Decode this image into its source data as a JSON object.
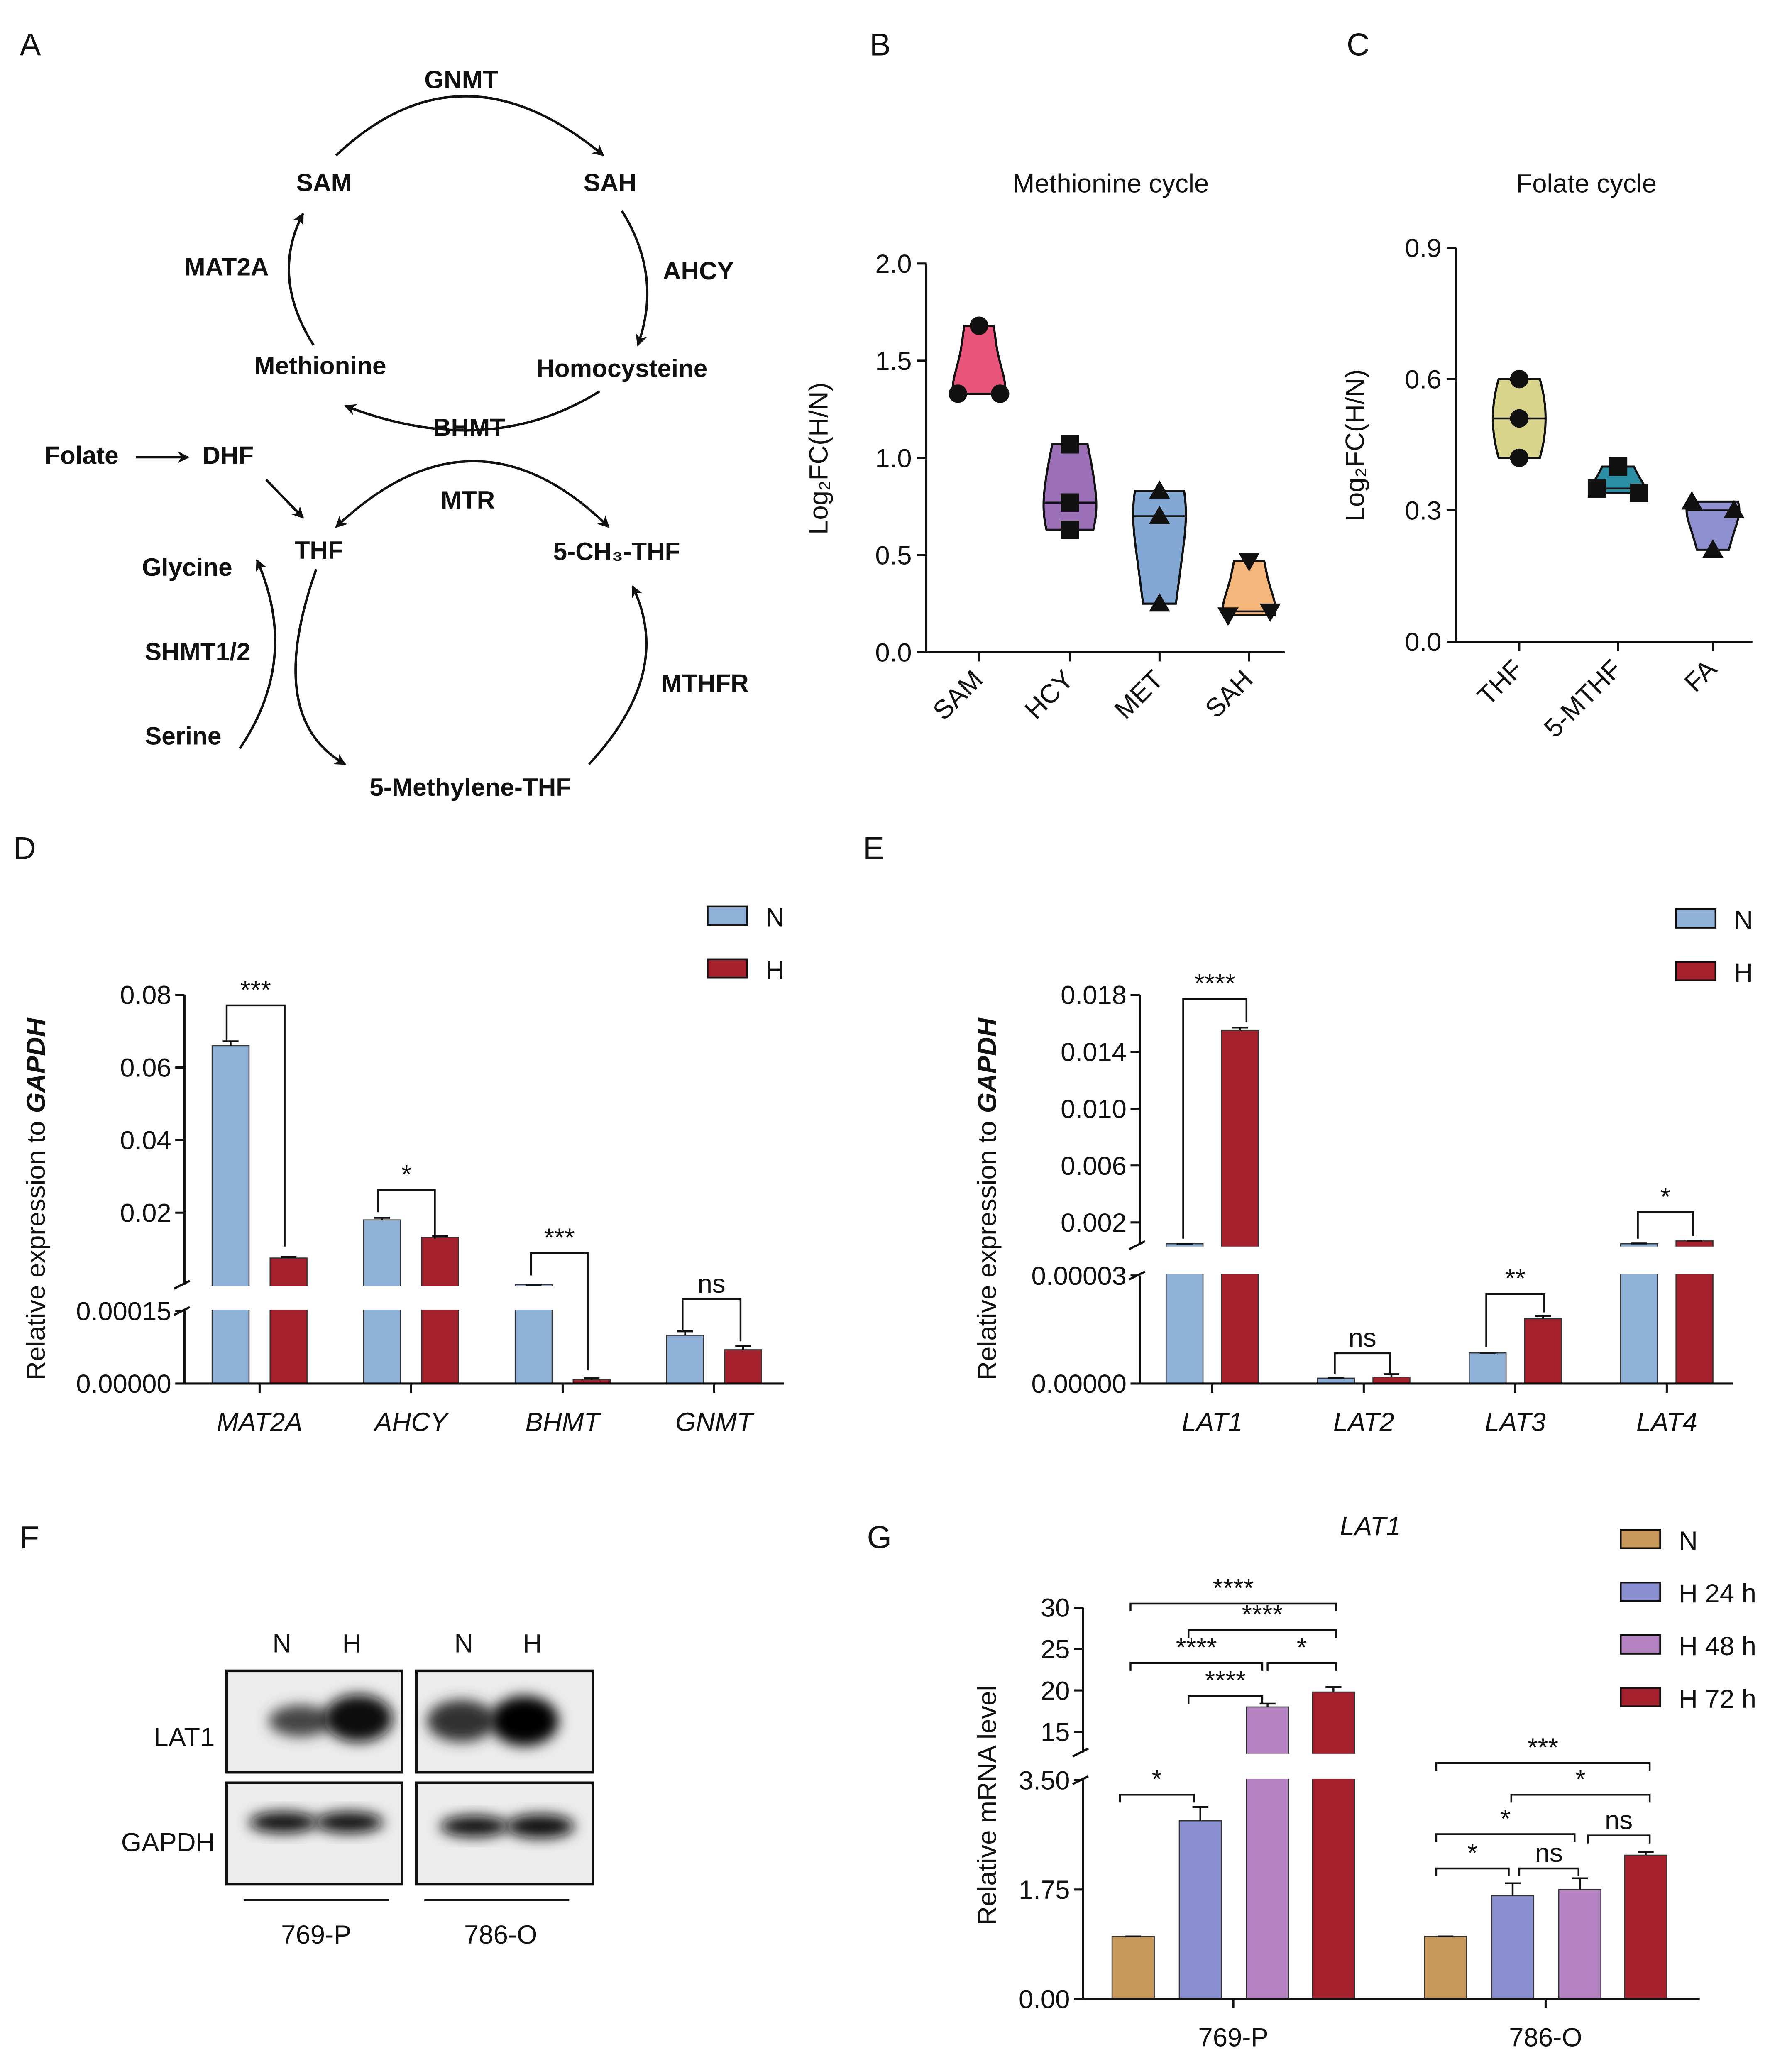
{
  "panel_labels": [
    "A",
    "B",
    "C",
    "D",
    "E",
    "F",
    "G"
  ],
  "diagram": {
    "nodes": [
      "SAM",
      "SAH",
      "Homocysteine",
      "Methionine",
      "Folate",
      "DHF",
      "THF",
      "5-CH₃-THF",
      "5-Methylene-THF",
      "Glycine",
      "Serine"
    ],
    "enzymes": [
      "GNMT",
      "AHCY",
      "BHMT",
      "MAT2A",
      "MTR",
      "MTHFR",
      "SHMT1/2"
    ]
  },
  "blot": {
    "lanes": [
      "N",
      "H",
      "N",
      "H"
    ],
    "rows": [
      "LAT1",
      "GAPDH"
    ],
    "groups": [
      "769-P",
      "786-O"
    ]
  },
  "chart_data": [
    {
      "type": "violin",
      "title": "Methionine cycle",
      "ylabel": "Log₂FC(H/N)",
      "categories": [
        "SAM",
        "HCY",
        "MET",
        "SAH"
      ],
      "colors": [
        "#e8547a",
        "#9b70b6",
        "#82a8d6",
        "#f5b67c"
      ],
      "markers": [
        "circle",
        "square",
        "triangle",
        "triangle-down"
      ],
      "values": [
        [
          1.68,
          1.33,
          1.33
        ],
        [
          1.07,
          0.77,
          0.63
        ],
        [
          0.83,
          0.7,
          0.25
        ],
        [
          0.47,
          0.19,
          0.21
        ]
      ],
      "ylim": [
        0,
        2
      ],
      "yticks": [
        {
          "value": 0,
          "label": "0.0"
        },
        0.5,
        {
          "value": 1,
          "label": "1.0"
        },
        1.5,
        {
          "value": 2,
          "label": "2.0"
        }
      ]
    },
    {
      "type": "violin",
      "title": "Folate cycle",
      "ylabel": "Log₂FC(H/N)",
      "categories": [
        "THF",
        "5-MTHF",
        "FA"
      ],
      "colors": [
        "#d8d48c",
        "#2a8fa4",
        "#8e90d0"
      ],
      "markers": [
        "circle",
        "square",
        "triangle"
      ],
      "values": [
        [
          0.6,
          0.51,
          0.42
        ],
        [
          0.4,
          0.35,
          0.34
        ],
        [
          0.32,
          0.3,
          0.21
        ]
      ],
      "ylim": [
        0,
        0.9
      ],
      "yticks": [
        {
          "value": 0,
          "label": "0.0"
        },
        0.3,
        0.6,
        0.9
      ]
    },
    {
      "type": "bar",
      "ylabel": "Relative expression to",
      "ylabel_gene": "GAPDH",
      "categories": [
        "MAT2A",
        "AHCY",
        "BHMT",
        "GNMT"
      ],
      "series": [
        {
          "name": "N",
          "color": "#8fb1d8",
          "values": [
            0.066,
            0.018,
            0.00016,
            0.0001
          ],
          "errors": [
            0.0012,
            0.0006,
            0,
            8e-06
          ]
        },
        {
          "name": "H",
          "color": "#a3202c",
          "values": [
            0.0075,
            0.0132,
            8e-06,
            7e-05
          ],
          "errors": [
            0.0003,
            0.0003,
            3e-06,
            8e-06
          ]
        }
      ],
      "ylim_segments": [
        [
          0,
          0.00015
        ],
        [
          0.00015,
          0.08
        ]
      ],
      "yticks": [
        {
          "value": 0,
          "label": "0.00000"
        },
        0.00015,
        0.02,
        0.04,
        0.06,
        0.08
      ],
      "significance": [
        "***",
        "*",
        "***",
        "ns"
      ],
      "legend": "top-right"
    },
    {
      "type": "bar",
      "ylabel": "Relative expression to",
      "ylabel_gene": "GAPDH",
      "categories": [
        "LAT1",
        "LAT2",
        "LAT3",
        "LAT4"
      ],
      "series": [
        {
          "name": "N",
          "color": "#8fb1d8",
          "values": [
            0.0005,
            1.5e-06,
            8.5e-06,
            0.0005
          ],
          "errors": [
            0,
            0,
            0,
            2e-05
          ]
        },
        {
          "name": "H",
          "color": "#a3202c",
          "values": [
            0.0155,
            1.8e-06,
            1.8e-05,
            0.0007
          ],
          "errors": [
            0.0002,
            8e-07,
            8e-07,
            2e-05
          ]
        }
      ],
      "ylim_segments": [
        [
          0,
          3e-05
        ],
        [
          0.0004,
          0.018
        ]
      ],
      "yticks": [
        {
          "value": 0,
          "label": "0.00000"
        },
        3e-05,
        0.002,
        0.006,
        {
          "value": 0.01,
          "label": "0.010"
        },
        0.014,
        0.018
      ],
      "significance": [
        "****",
        "ns",
        "**",
        "*"
      ],
      "legend": "top-right"
    },
    {
      "type": "bar",
      "title": "LAT1",
      "ylabel": "Relative mRNA level",
      "categories": [
        "769-P",
        "786-O"
      ],
      "series": [
        {
          "name": "N",
          "color": "#c8975a",
          "values": [
            1,
            1
          ],
          "errors": [
            0,
            0
          ]
        },
        {
          "name": "H 24 h",
          "color": "#8a8fd0",
          "values": [
            2.85,
            1.65
          ],
          "errors": [
            0.22,
            0.2
          ]
        },
        {
          "name": "H 48 h",
          "color": "#b583c1",
          "values": [
            18,
            1.75
          ],
          "errors": [
            0.4,
            0.18
          ]
        },
        {
          "name": "H 72 h",
          "color": "#a3202c",
          "values": [
            19.8,
            2.3
          ],
          "errors": [
            0.6,
            0.05
          ]
        }
      ],
      "ylim_segments": [
        [
          0,
          3.5
        ],
        [
          12.5,
          30
        ]
      ],
      "yticks": [
        {
          "value": 0,
          "label": "0.00"
        },
        1.75,
        {
          "value": 3.5,
          "label": "3.50"
        },
        15,
        20,
        25,
        30
      ],
      "significance": [
        "*",
        "****",
        "****",
        "*",
        "****",
        "****",
        "***",
        "*",
        "*",
        "ns",
        "*",
        "ns"
      ],
      "legend": "top-right"
    }
  ]
}
